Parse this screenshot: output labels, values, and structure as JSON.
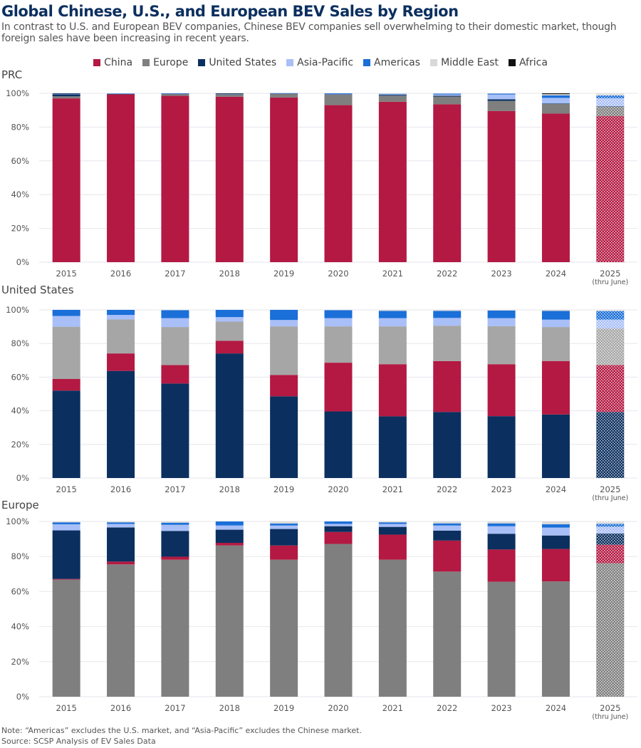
{
  "title": "Global Chinese, U.S., and European BEV Sales by Region",
  "subtitle": "In contrast to U.S. and European BEV companies, Chinese BEV companies sell overwhelming to their domestic market, though foreign sales have been increasing in recent years.",
  "note": "Note: “Americas” excludes the U.S. market, and “Asia-Pacific” excludes the Chinese market.",
  "source": "Source: SCSP Analysis of EV Sales Data",
  "legend": [
    {
      "name": "China",
      "color": "#b31942"
    },
    {
      "name": "Europe",
      "color": "#7f7f7f"
    },
    {
      "name": "United States",
      "color": "#0b2f5f"
    },
    {
      "name": "Asia-Pacific",
      "color": "#a9bff7"
    },
    {
      "name": "Americas",
      "color": "#1a6fd8"
    },
    {
      "name": "Middle East",
      "color": "#d9d9d9"
    },
    {
      "name": "Africa",
      "color": "#111111"
    }
  ],
  "chart_data": [
    {
      "type": "bar",
      "stacked": true,
      "title": "PRC",
      "categories": [
        "2015",
        "2016",
        "2017",
        "2018",
        "2019",
        "2020",
        "2021",
        "2022",
        "2023",
        "2024",
        "2025"
      ],
      "category_sublabels": {
        "2025": "(thru June)"
      },
      "yticks": [
        "0%",
        "20%",
        "40%",
        "60%",
        "80%",
        "100%"
      ],
      "ylim": [
        0,
        100
      ],
      "series": [
        {
          "name": "China",
          "values": [
            97,
            99.5,
            98.5,
            98,
            97.5,
            93,
            95,
            93.5,
            89.5,
            88,
            86.5
          ]
        },
        {
          "name": "Europe",
          "values": [
            1.2,
            0.1,
            1,
            1.3,
            2.3,
            6.2,
            3.6,
            4.6,
            6,
            5.7,
            5.5
          ]
        },
        {
          "name": "United States",
          "values": [
            1.2,
            0.1,
            0.3,
            0.2,
            0.1,
            0.2,
            0.5,
            0.5,
            1,
            0.3,
            0.3
          ]
        },
        {
          "name": "Asia-Pacific",
          "values": [
            0.2,
            0.1,
            0.1,
            0.1,
            0.1,
            0.2,
            0.3,
            0.7,
            2.8,
            3.3,
            4.8
          ]
        },
        {
          "name": "Americas",
          "values": [
            0.2,
            0.2,
            0.1,
            0.1,
            0.1,
            0.4,
            0.3,
            0.5,
            0.5,
            1.5,
            1.7
          ]
        },
        {
          "name": "Middle East",
          "values": [
            0,
            0,
            0,
            0,
            0,
            0,
            0.3,
            0.2,
            0.2,
            0.7,
            1.2
          ]
        },
        {
          "name": "Africa",
          "values": [
            0.2,
            0,
            0,
            0.3,
            0,
            0,
            0,
            0,
            0,
            0.5,
            0
          ]
        }
      ]
    },
    {
      "type": "bar",
      "stacked": true,
      "title": "United States",
      "categories": [
        "2015",
        "2016",
        "2017",
        "2018",
        "2019",
        "2020",
        "2021",
        "2022",
        "2023",
        "2024",
        "2025"
      ],
      "category_sublabels": {
        "2025": "(thru June)"
      },
      "yticks": [
        "0%",
        "20%",
        "40%",
        "60%",
        "80%",
        "100%"
      ],
      "ylim": [
        0,
        100
      ],
      "series": [
        {
          "name": "United States",
          "values": [
            52,
            63.7,
            56.2,
            74.1,
            48.6,
            39.6,
            36.7,
            39.3,
            36.8,
            37.8,
            39.3
          ]
        },
        {
          "name": "China",
          "values": [
            6.9,
            10.4,
            11,
            7.5,
            12.7,
            29,
            31,
            30.2,
            30.9,
            31.8,
            27.9
          ]
        },
        {
          "name": "Europe",
          "color": "#a6a6a6",
          "values": [
            31.1,
            20.2,
            22.6,
            11.4,
            28.9,
            21.6,
            22.5,
            21.1,
            22.6,
            20.2,
            21.7
          ]
        },
        {
          "name": "Asia-Pacific",
          "values": [
            6.4,
            2.7,
            5.3,
            2.7,
            3.8,
            4.9,
            4.9,
            4.6,
            4.8,
            4.4,
            5.3
          ]
        },
        {
          "name": "Americas",
          "values": [
            3.6,
            3,
            4.8,
            4.3,
            6,
            4.8,
            4.3,
            4.2,
            4.5,
            5.2,
            5.1
          ]
        },
        {
          "name": "Middle East",
          "values": [
            0,
            0,
            0.1,
            0,
            0,
            0.1,
            0.6,
            0.6,
            0.4,
            0.6,
            0.7
          ]
        }
      ]
    },
    {
      "type": "bar",
      "stacked": true,
      "title": "Europe",
      "categories": [
        "2015",
        "2016",
        "2017",
        "2018",
        "2019",
        "2020",
        "2021",
        "2022",
        "2023",
        "2024",
        "2025"
      ],
      "category_sublabels": {
        "2025": "(thru June)"
      },
      "yticks": [
        "0%",
        "20%",
        "40%",
        "60%",
        "80%",
        "100%"
      ],
      "ylim": [
        0,
        100
      ],
      "series": [
        {
          "name": "Europe",
          "values": [
            66.8,
            75.5,
            78.2,
            86.3,
            78.2,
            87.2,
            78.2,
            71.4,
            65.6,
            65.8,
            76.2
          ]
        },
        {
          "name": "China",
          "values": [
            0.4,
            1.6,
            1.7,
            1.5,
            8.1,
            6.8,
            14.3,
            17.7,
            18.4,
            18.5,
            10.5
          ]
        },
        {
          "name": "United States",
          "values": [
            27.7,
            19.5,
            14.7,
            7.5,
            9.4,
            3.3,
            4.4,
            5.7,
            9,
            7.7,
            6.4
          ]
        },
        {
          "name": "Asia-Pacific",
          "values": [
            3.5,
            2,
            3.5,
            2.4,
            2,
            1.3,
            1.7,
            2.9,
            4.3,
            4.5,
            3.9
          ]
        },
        {
          "name": "Americas",
          "values": [
            1.1,
            0.9,
            1.2,
            2.3,
            1.1,
            1.4,
            0.9,
            1.2,
            1.6,
            1.9,
            1.6
          ]
        },
        {
          "name": "Middle East",
          "values": [
            0.5,
            0.5,
            0.7,
            0,
            1.2,
            0,
            0.5,
            1.1,
            1.1,
            1.6,
            1.4
          ]
        }
      ]
    }
  ]
}
